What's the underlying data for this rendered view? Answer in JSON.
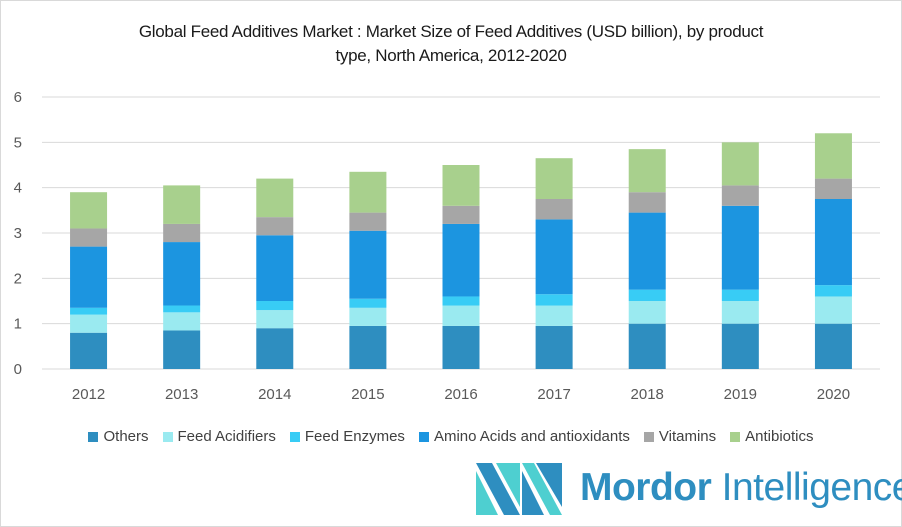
{
  "chart_data": {
    "type": "bar",
    "stacked": true,
    "title": "Global Feed Additives Market : Market Size of Feed Additives (USD billion), by product type, North America, 2012-2020",
    "title_lines": [
      "Global Feed Additives Market : Market Size of Feed Additives (USD billion), by product",
      "type, North America, 2012-2020"
    ],
    "categories": [
      "2012",
      "2013",
      "2014",
      "2015",
      "2016",
      "2017",
      "2018",
      "2019",
      "2020"
    ],
    "series": [
      {
        "name": "Others",
        "color": "#2e8ec0",
        "values": [
          0.8,
          0.85,
          0.9,
          0.95,
          0.95,
          0.95,
          1.0,
          1.0,
          1.0
        ]
      },
      {
        "name": "Feed Acidifiers",
        "color": "#9aeaf0",
        "values": [
          0.4,
          0.4,
          0.4,
          0.4,
          0.45,
          0.45,
          0.5,
          0.5,
          0.6
        ]
      },
      {
        "name": "Feed Enzymes",
        "color": "#38ccf5",
        "values": [
          0.15,
          0.15,
          0.2,
          0.2,
          0.2,
          0.25,
          0.25,
          0.25,
          0.25
        ]
      },
      {
        "name": "Amino Acids and antioxidants",
        "color": "#1c95e0",
        "values": [
          1.35,
          1.4,
          1.45,
          1.5,
          1.6,
          1.65,
          1.7,
          1.85,
          1.9
        ]
      },
      {
        "name": "Vitamins",
        "color": "#a6a6a6",
        "values": [
          0.4,
          0.4,
          0.4,
          0.4,
          0.4,
          0.45,
          0.45,
          0.45,
          0.45
        ]
      },
      {
        "name": "Antibiotics",
        "color": "#a8d08d",
        "values": [
          0.8,
          0.85,
          0.85,
          0.9,
          0.9,
          0.9,
          0.95,
          0.95,
          1.0
        ]
      }
    ],
    "ylim": [
      0,
      6
    ],
    "yticks": [
      "0",
      "1",
      "2",
      "3",
      "4",
      "5",
      "6"
    ],
    "grid": true,
    "legend": "bottom"
  },
  "branding": {
    "logo_word1": "Mordor",
    "logo_word2": "Intelligence",
    "logo_colors": [
      "#2e8ec0",
      "#4ecfd0"
    ]
  }
}
